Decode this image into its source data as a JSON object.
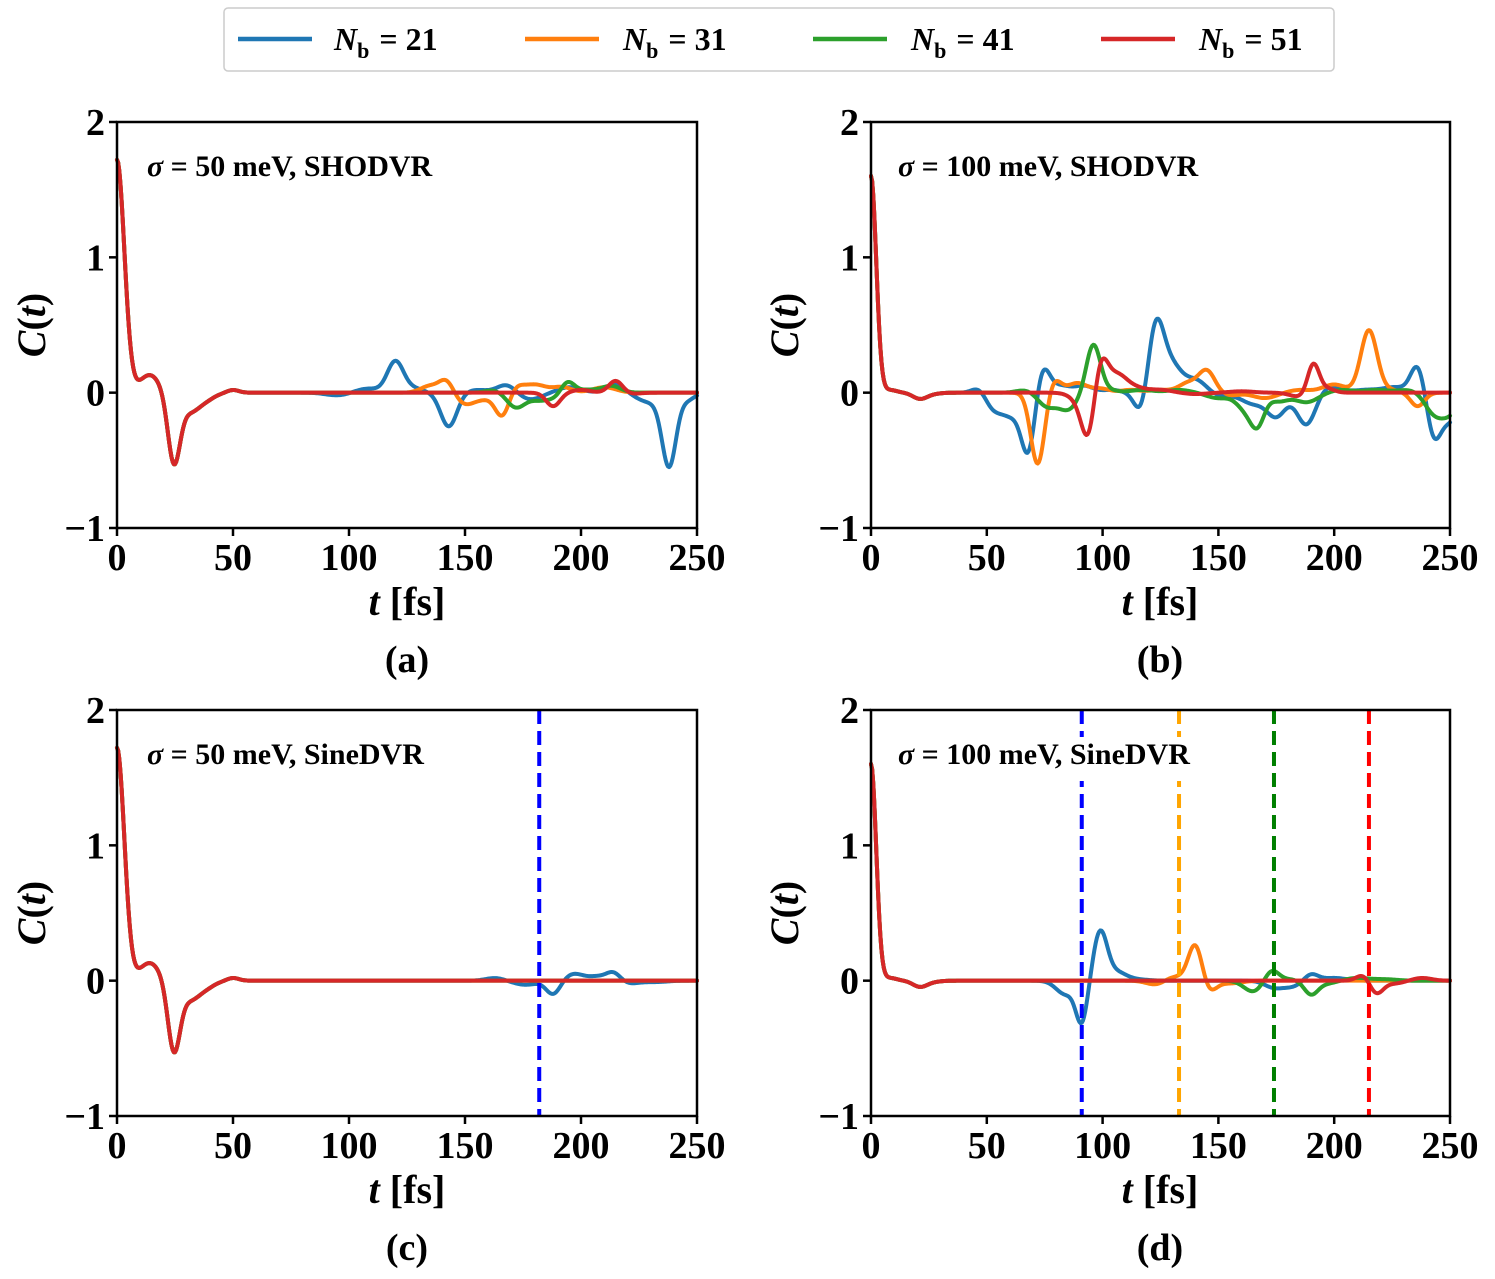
{
  "legend": {
    "symbol": "N",
    "subscript": "b",
    "entries": [
      {
        "key": "nb21",
        "value": "= 21",
        "color": "#1f77b4"
      },
      {
        "key": "nb31",
        "value": "= 31",
        "color": "#ff7f0e"
      },
      {
        "key": "nb41",
        "value": "= 41",
        "color": "#2ca02c"
      },
      {
        "key": "nb51",
        "value": "= 51",
        "color": "#d62728"
      }
    ]
  },
  "axes_text": {
    "ylabel_main": "C",
    "ylabel_open": "(",
    "ylabel_var": "t",
    "ylabel_close": ")",
    "xlabel_var": "t",
    "xlabel_unit": " [fs]",
    "sigma_symbol": "σ"
  },
  "chart_data": [
    {
      "id": "a",
      "type": "line",
      "caption": "(a)",
      "annotation_value": " = 50 meV, SHODVR",
      "xlim": [
        0,
        250
      ],
      "ylim": [
        -1,
        2
      ],
      "xticks": [
        0,
        50,
        100,
        150,
        200,
        250
      ],
      "yticks": [
        -1,
        0,
        1,
        2
      ],
      "ytick_labels": [
        "−1",
        "0",
        "1",
        "2"
      ],
      "base": "s50",
      "series": [
        {
          "name": "Nb = 21",
          "color": "#1f77b4",
          "bumps": [
            [
              95,
              -0.02,
              5
            ],
            [
              108,
              0.03,
              5
            ],
            [
              120,
              0.23,
              3.5
            ],
            [
              128,
              0.03,
              4
            ],
            [
              143,
              -0.25,
              3.5
            ],
            [
              155,
              0.02,
              5
            ],
            [
              168,
              0.06,
              4
            ],
            [
              178,
              -0.05,
              5
            ],
            [
              195,
              0.04,
              5
            ],
            [
              215,
              0.06,
              4
            ],
            [
              230,
              -0.07,
              6
            ],
            [
              238,
              -0.52,
              3
            ],
            [
              246,
              -0.05,
              3
            ]
          ]
        },
        {
          "name": "Nb = 31",
          "color": "#ff7f0e",
          "bumps": [
            [
              135,
              0.05,
              4
            ],
            [
              142,
              0.09,
              3
            ],
            [
              150,
              -0.08,
              4
            ],
            [
              158,
              -0.04,
              4
            ],
            [
              166,
              -0.17,
              3
            ],
            [
              172,
              0.04,
              3
            ],
            [
              180,
              0.06,
              5
            ],
            [
              192,
              0.04,
              4
            ],
            [
              210,
              0.04,
              5
            ]
          ]
        },
        {
          "name": "Nb = 41",
          "color": "#2ca02c",
          "bumps": [
            [
              163,
              0.02,
              4
            ],
            [
              172,
              -0.11,
              4
            ],
            [
              182,
              -0.05,
              4
            ],
            [
              190,
              -0.04,
              4
            ],
            [
              194,
              0.1,
              3
            ],
            [
              203,
              0.02,
              4
            ],
            [
              213,
              0.05,
              4
            ]
          ]
        },
        {
          "name": "Nb = 51",
          "color": "#d62728",
          "bumps": [
            [
              188,
              -0.1,
              3
            ],
            [
              200,
              0.02,
              4
            ],
            [
              215,
              0.09,
              3
            ],
            [
              221,
              -0.01,
              4
            ]
          ]
        }
      ],
      "vlines": []
    },
    {
      "id": "b",
      "type": "line",
      "caption": "(b)",
      "annotation_value": " = 100 meV, SHODVR",
      "xlim": [
        0,
        250
      ],
      "ylim": [
        -1,
        2
      ],
      "xticks": [
        0,
        50,
        100,
        150,
        200,
        250
      ],
      "yticks": [
        -1,
        0,
        1,
        2
      ],
      "ytick_labels": [
        "−1",
        "0",
        "1",
        "2"
      ],
      "base": "s100",
      "series": [
        {
          "name": "Nb = 21",
          "color": "#1f77b4",
          "bumps": [
            [
              47,
              0.05,
              3
            ],
            [
              53,
              -0.12,
              4
            ],
            [
              61,
              -0.15,
              4
            ],
            [
              68,
              -0.43,
              3
            ],
            [
              74,
              0.2,
              3
            ],
            [
              82,
              0.05,
              4
            ],
            [
              92,
              0.05,
              4
            ],
            [
              104,
              0.02,
              4
            ],
            [
              117,
              -0.18,
              3
            ],
            [
              123,
              0.52,
              3.5
            ],
            [
              130,
              0.18,
              4
            ],
            [
              140,
              0.1,
              5
            ],
            [
              150,
              -0.03,
              5
            ],
            [
              165,
              -0.08,
              5
            ],
            [
              175,
              -0.17,
              4
            ],
            [
              188,
              -0.24,
              4
            ],
            [
              198,
              0.05,
              5
            ],
            [
              214,
              0.02,
              5
            ],
            [
              226,
              0.04,
              5
            ],
            [
              236,
              0.2,
              3
            ],
            [
              243,
              -0.3,
              3
            ],
            [
              250,
              -0.2,
              4
            ]
          ]
        },
        {
          "name": "Nb = 31",
          "color": "#ff7f0e",
          "bumps": [
            [
              72,
              -0.53,
              3
            ],
            [
              79,
              0.1,
              3
            ],
            [
              89,
              0.07,
              4
            ],
            [
              99,
              0.03,
              4
            ],
            [
              112,
              0.02,
              4
            ],
            [
              125,
              0.02,
              5
            ],
            [
              137,
              0.07,
              4
            ],
            [
              145,
              0.16,
              3.5
            ],
            [
              155,
              -0.02,
              4
            ],
            [
              170,
              -0.04,
              5
            ],
            [
              185,
              0.02,
              5
            ],
            [
              200,
              0.06,
              5
            ],
            [
              215,
              0.46,
              3.5
            ],
            [
              224,
              0.02,
              4
            ],
            [
              236,
              -0.1,
              3
            ]
          ]
        },
        {
          "name": "Nb = 41",
          "color": "#2ca02c",
          "bumps": [
            [
              67,
              0.02,
              4
            ],
            [
              76,
              -0.1,
              4
            ],
            [
              85,
              -0.12,
              4
            ],
            [
              96,
              0.35,
              3
            ],
            [
              102,
              0.02,
              4
            ],
            [
              117,
              0.02,
              5
            ],
            [
              133,
              0.02,
              5
            ],
            [
              150,
              -0.04,
              5
            ],
            [
              162,
              -0.12,
              4
            ],
            [
              167,
              -0.2,
              3
            ],
            [
              176,
              -0.06,
              4
            ],
            [
              188,
              -0.07,
              5
            ],
            [
              203,
              0.02,
              5
            ],
            [
              218,
              0.02,
              5
            ],
            [
              232,
              0.02,
              5
            ],
            [
              243,
              -0.14,
              4
            ],
            [
              250,
              -0.14,
              4
            ]
          ]
        },
        {
          "name": "Nb = 51",
          "color": "#d62728",
          "bumps": [
            [
              90,
              -0.05,
              4
            ],
            [
              94,
              -0.33,
              3
            ],
            [
              99,
              0.27,
              3
            ],
            [
              106,
              0.12,
              4
            ],
            [
              113,
              0.04,
              5
            ],
            [
              125,
              0.02,
              5
            ],
            [
              140,
              -0.01,
              5
            ],
            [
              160,
              0.01,
              5
            ],
            [
              185,
              -0.03,
              4
            ],
            [
              191,
              0.22,
              2.5
            ],
            [
              197,
              0.03,
              3
            ]
          ]
        }
      ],
      "vlines": []
    },
    {
      "id": "c",
      "type": "line",
      "caption": "(c)",
      "annotation_value": " = 50 meV, SineDVR",
      "xlim": [
        0,
        250
      ],
      "ylim": [
        -1,
        2
      ],
      "xticks": [
        0,
        50,
        100,
        150,
        200,
        250
      ],
      "yticks": [
        -1,
        0,
        1,
        2
      ],
      "ytick_labels": [
        "−1",
        "0",
        "1",
        "2"
      ],
      "base": "s50",
      "series": [
        {
          "name": "Nb = 21",
          "color": "#1f77b4",
          "bumps": [
            [
              163,
              0.02,
              4
            ],
            [
              176,
              -0.03,
              5
            ],
            [
              188,
              -0.1,
              3
            ],
            [
              197,
              0.05,
              4
            ],
            [
              207,
              0.03,
              4
            ],
            [
              214,
              0.06,
              3
            ],
            [
              221,
              -0.02,
              4
            ],
            [
              232,
              -0.01,
              5
            ]
          ]
        },
        {
          "name": "Nb = 31",
          "color": "#ff7f0e",
          "bumps": []
        },
        {
          "name": "Nb = 41",
          "color": "#2ca02c",
          "bumps": []
        },
        {
          "name": "Nb = 51",
          "color": "#d62728",
          "bumps": []
        }
      ],
      "vlines": [
        {
          "x": 182,
          "color": "#0000ff"
        }
      ]
    },
    {
      "id": "d",
      "type": "line",
      "caption": "(d)",
      "annotation_value": " = 100 meV, SineDVR",
      "xlim": [
        0,
        250
      ],
      "ylim": [
        -1,
        2
      ],
      "xticks": [
        0,
        50,
        100,
        150,
        200,
        250
      ],
      "yticks": [
        -1,
        0,
        1,
        2
      ],
      "ytick_labels": [
        "−1",
        "0",
        "1",
        "2"
      ],
      "base": "s100",
      "series": [
        {
          "name": "Nb = 21",
          "color": "#1f77b4",
          "bumps": [
            [
              84,
              -0.1,
              4
            ],
            [
              91,
              -0.3,
              2.5
            ],
            [
              99,
              0.36,
              3
            ],
            [
              106,
              0.06,
              4
            ],
            [
              114,
              0.01,
              5
            ],
            [
              174,
              -0.05,
              4
            ],
            [
              182,
              -0.04,
              4
            ],
            [
              190,
              0.05,
              3
            ],
            [
              200,
              0.02,
              5
            ]
          ]
        },
        {
          "name": "Nb = 31",
          "color": "#ff7f0e",
          "bumps": [
            [
              123,
              -0.03,
              4
            ],
            [
              131,
              0.03,
              4
            ],
            [
              140,
              0.27,
              3
            ],
            [
              146,
              -0.08,
              3
            ],
            [
              155,
              -0.02,
              5
            ]
          ]
        },
        {
          "name": "Nb = 41",
          "color": "#2ca02c",
          "bumps": [
            [
              165,
              -0.08,
              4
            ],
            [
              173,
              0.08,
              3
            ],
            [
              181,
              0.01,
              4
            ],
            [
              190,
              -0.1,
              3
            ],
            [
              197,
              -0.02,
              4
            ],
            [
              210,
              0.02,
              5
            ],
            [
              222,
              0.01,
              5
            ]
          ]
        },
        {
          "name": "Nb = 51",
          "color": "#d62728",
          "bumps": [
            [
              213,
              0.05,
              3
            ],
            [
              218,
              -0.1,
              3
            ],
            [
              226,
              -0.02,
              4
            ],
            [
              238,
              0.02,
              4
            ]
          ]
        }
      ],
      "vlines": [
        {
          "x": 91,
          "color": "#0000ff"
        },
        {
          "x": 133,
          "color": "#ffa500"
        },
        {
          "x": 174,
          "color": "#007f00"
        },
        {
          "x": 215,
          "color": "#ff0000"
        }
      ]
    }
  ]
}
